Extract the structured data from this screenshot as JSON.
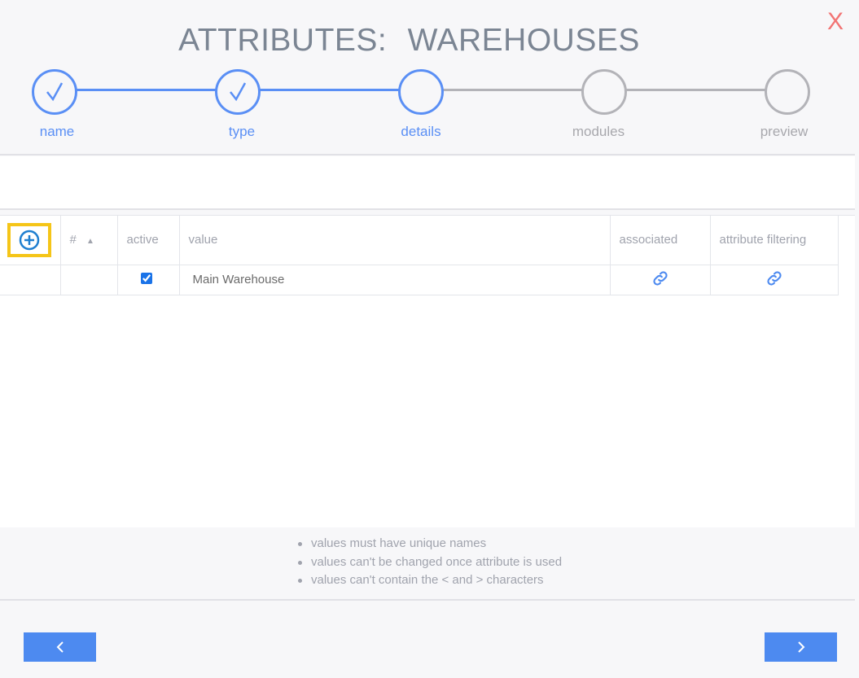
{
  "title": "ATTRIBUTES:   WAREHOUSES",
  "close_label": "X",
  "steps": [
    {
      "label": "name",
      "state": "done"
    },
    {
      "label": "type",
      "state": "done"
    },
    {
      "label": "details",
      "state": "current"
    },
    {
      "label": "modules",
      "state": "pending"
    },
    {
      "label": "preview",
      "state": "pending"
    }
  ],
  "table": {
    "headers": {
      "number": "#",
      "active": "active",
      "value": "value",
      "associated": "associated",
      "attribute_filtering": "attribute filtering"
    },
    "sort": "ascending",
    "rows": [
      {
        "number": "",
        "active": true,
        "value": "Main Warehouse",
        "associated_icon": "link-icon",
        "filtering_icon": "link-icon"
      }
    ]
  },
  "notes": [
    "values must have unique names",
    "values can't be changed once attribute is used",
    "values can't contain the < and > characters"
  ],
  "colors": {
    "accent": "#4d8af0",
    "highlight": "#f5c518",
    "close": "#f27474"
  }
}
